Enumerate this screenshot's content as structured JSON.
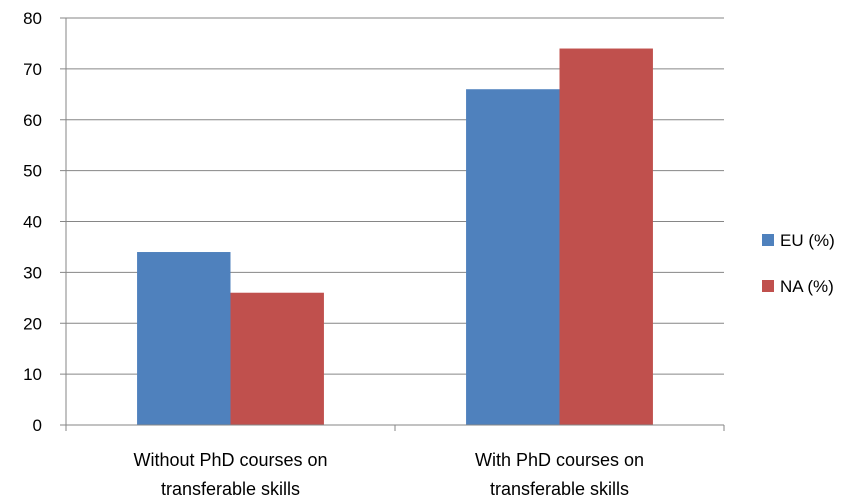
{
  "chart_data": {
    "type": "bar",
    "title": "",
    "xlabel": "",
    "ylabel": "",
    "categories": [
      [
        "Without PhD courses on",
        "transferable skills"
      ],
      [
        "With PhD courses on",
        "transferable skills"
      ]
    ],
    "series": [
      {
        "name": "EU (%)",
        "values": [
          34,
          66
        ],
        "color": "#4F81BD"
      },
      {
        "name": "NA (%)",
        "values": [
          26,
          74
        ],
        "color": "#C0504D"
      }
    ],
    "ylim": [
      0,
      80
    ],
    "yticks": [
      0,
      10,
      20,
      30,
      40,
      50,
      60,
      70,
      80
    ],
    "grid": true,
    "legend_position": "right"
  }
}
